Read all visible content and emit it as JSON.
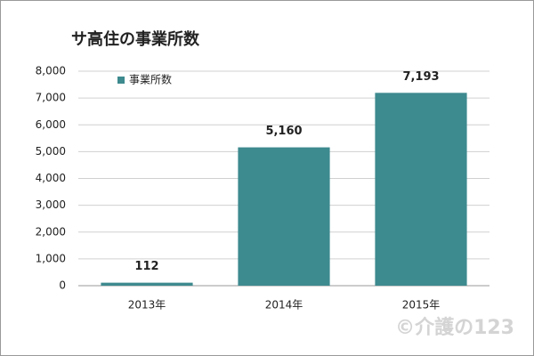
{
  "chart_data": {
    "type": "bar",
    "title": "サ高住の事業所数",
    "categories": [
      "2013年",
      "2014年",
      "2015年"
    ],
    "series": [
      {
        "name": "事業所数",
        "color": "#3d8a8f",
        "values": [
          112,
          5160,
          7193
        ],
        "value_labels": [
          "112",
          "5,160",
          "7,193"
        ]
      }
    ],
    "ylim": [
      0,
      8000
    ],
    "yticks": [
      0,
      {
        "value": 1000,
        "label": "1,000"
      },
      {
        "value": 2000,
        "label": "2,000"
      },
      {
        "value": 3000,
        "label": "3,000"
      },
      {
        "value": 4000,
        "label": "4,000"
      },
      {
        "value": 5000,
        "label": "5,000"
      },
      {
        "value": 6000,
        "label": "6,000"
      },
      {
        "value": 7000,
        "label": "7,000"
      },
      {
        "value": 8000,
        "label": "8,000"
      }
    ],
    "grid": true,
    "legend": "top-left",
    "annotations": [
      "©介護の123"
    ]
  }
}
